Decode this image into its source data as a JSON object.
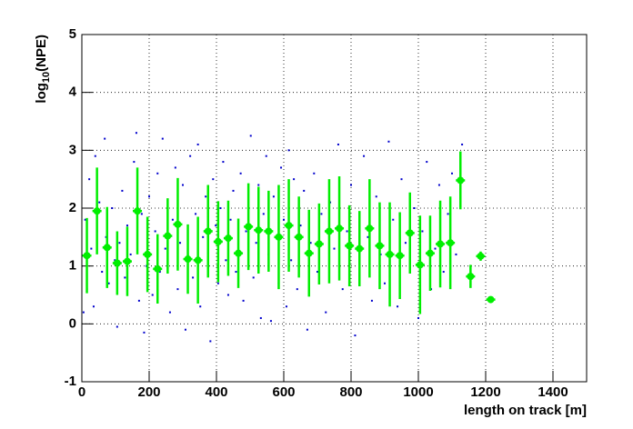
{
  "chart_data": {
    "type": "scatter",
    "x_label": "length on track [m]",
    "y_label": {
      "base": "log",
      "subscript": "10",
      "rest": "(NPE)"
    },
    "xlim": [
      0,
      1500
    ],
    "ylim": [
      -1,
      5
    ],
    "xticks": [
      0,
      200,
      400,
      600,
      800,
      1000,
      1200,
      1400
    ],
    "yticks": [
      -1,
      0,
      1,
      2,
      3,
      4,
      5
    ],
    "grid": true,
    "series": [
      {
        "type": "scatter",
        "color": "#0000cc",
        "x": [
          5,
          10,
          15,
          22,
          28,
          35,
          40,
          45,
          52,
          60,
          68,
          72,
          80,
          90,
          98,
          105,
          112,
          120,
          128,
          135,
          145,
          155,
          162,
          170,
          178,
          185,
          192,
          200,
          210,
          218,
          225,
          232,
          240,
          248,
          255,
          262,
          270,
          278,
          285,
          292,
          300,
          308,
          315,
          322,
          330,
          338,
          345,
          352,
          360,
          368,
          375,
          382,
          390,
          398,
          405,
          412,
          420,
          428,
          435,
          442,
          450,
          458,
          465,
          472,
          480,
          488,
          495,
          502,
          510,
          518,
          525,
          532,
          540,
          548,
          555,
          562,
          570,
          578,
          585,
          592,
          600,
          608,
          615,
          622,
          630,
          640,
          650,
          660,
          670,
          680,
          690,
          700,
          712,
          725,
          738,
          750,
          762,
          775,
          788,
          800,
          812,
          825,
          838,
          850,
          862,
          875,
          888,
          900,
          912,
          925,
          938,
          950,
          962,
          975,
          988,
          1000,
          1012,
          1025,
          1038,
          1050,
          1062,
          1075,
          1088,
          1100,
          1112,
          1125,
          1130
        ],
        "values": [
          0.2,
          1.8,
          0.6,
          2.5,
          1.3,
          0.3,
          2.9,
          1.6,
          2.1,
          0.9,
          3.2,
          1.5,
          0.7,
          2.0,
          1.1,
          -0.05,
          1.4,
          2.3,
          0.8,
          1.7,
          1.2,
          2.8,
          3.3,
          0.4,
          1.9,
          -0.15,
          1.0,
          2.2,
          0.5,
          1.6,
          2.6,
          0.9,
          3.2,
          1.3,
          2.0,
          0.2,
          1.8,
          2.7,
          0.6,
          1.4,
          2.4,
          -0.1,
          1.2,
          2.9,
          0.8,
          1.9,
          3.1,
          0.3,
          1.5,
          2.2,
          1.0,
          -0.3,
          2.5,
          1.7,
          0.7,
          2.0,
          2.8,
          1.1,
          0.5,
          1.8,
          2.3,
          0.9,
          1.3,
          2.6,
          0.4,
          1.6,
          2.0,
          3.25,
          0.8,
          1.4,
          2.4,
          0.1,
          1.9,
          2.9,
          1.2,
          0.05,
          2.2,
          1.5,
          0.7,
          2.7,
          1.8,
          0.3,
          3.0,
          1.1,
          2.5,
          0.6,
          1.7,
          2.3,
          -0.1,
          1.4,
          2.6,
          0.9,
          1.9,
          0.2,
          2.1,
          1.3,
          3.1,
          0.6,
          1.6,
          2.4,
          -0.2,
          1.0,
          2.9,
          1.5,
          0.4,
          2.2,
          1.2,
          0.7,
          3.15,
          1.8,
          0.3,
          2.5,
          1.4,
          0.9,
          2.0,
          0.1,
          1.6,
          2.8,
          0.6,
          1.3,
          2.4,
          0.9,
          1.9,
          2.6,
          1.2,
          2.9,
          3.1
        ]
      },
      {
        "type": "profile",
        "color": "#00ee00",
        "x": [
          15,
          45,
          75,
          105,
          135,
          165,
          195,
          225,
          255,
          285,
          315,
          345,
          375,
          405,
          435,
          465,
          495,
          525,
          555,
          585,
          615,
          645,
          675,
          705,
          735,
          765,
          795,
          825,
          855,
          885,
          915,
          945,
          975,
          1005,
          1035,
          1065,
          1095,
          1125,
          1155,
          1185,
          1215
        ],
        "values": [
          1.18,
          1.95,
          1.32,
          1.05,
          1.08,
          1.95,
          1.2,
          0.95,
          1.52,
          1.72,
          1.12,
          1.1,
          1.6,
          1.42,
          1.48,
          1.22,
          1.68,
          1.62,
          1.6,
          1.5,
          1.7,
          1.5,
          1.22,
          1.38,
          1.6,
          1.65,
          1.35,
          1.3,
          1.65,
          1.35,
          1.2,
          1.18,
          1.57,
          1.02,
          1.22,
          1.38,
          1.4,
          2.48,
          0.82,
          1.17,
          0.42
        ],
        "errors": [
          0.65,
          0.75,
          0.7,
          0.55,
          0.6,
          0.75,
          0.65,
          0.6,
          0.65,
          0.8,
          0.6,
          0.75,
          0.8,
          0.7,
          0.65,
          0.6,
          0.75,
          0.75,
          0.7,
          0.9,
          0.8,
          0.7,
          0.75,
          0.7,
          0.9,
          0.9,
          0.7,
          0.65,
          0.85,
          0.75,
          0.9,
          0.75,
          0.7,
          0.85,
          0.65,
          0.75,
          0.8,
          0.5,
          0.2,
          0.08,
          0.03
        ]
      }
    ]
  }
}
